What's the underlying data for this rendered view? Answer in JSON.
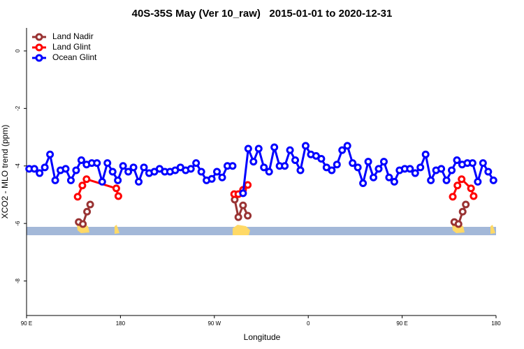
{
  "chart_data": {
    "type": "line",
    "title": "40S-35S May (Ver 10_raw)   2015-01-01 to 2020-12-31",
    "x_label": "Longitude",
    "y_label": "XCO2 - MLO trend (ppm)",
    "xlim": [
      90,
      540
    ],
    "ylim": [
      -9.2,
      0.8
    ],
    "xticks": [
      {
        "value": 90,
        "label": "90 E"
      },
      180,
      {
        "value": 270,
        "label": "90 W"
      },
      {
        "value": 360,
        "label": "0"
      },
      {
        "value": 450,
        "label": "90 E"
      },
      {
        "value": 540,
        "label": "180"
      }
    ],
    "yticks": [
      0,
      -2,
      -4,
      -6,
      -8
    ],
    "legend": "top-left",
    "series": [
      {
        "name": "Land Nadir",
        "color": "#993333",
        "x": [
          140,
          144,
          148,
          151,
          289.5,
          293,
          297.5,
          302,
          500,
          504,
          508,
          511
        ],
        "values": [
          -5.95,
          -6.02,
          -5.59,
          -5.34,
          -5.17,
          -5.78,
          -5.37,
          -5.73,
          -5.95,
          -6.02,
          -5.59,
          -5.34
        ],
        "breaks": [
          4,
          8
        ]
      },
      {
        "name": "Land Glint",
        "color": "#ff0000",
        "x": [
          139,
          143.5,
          147.5,
          176,
          178,
          289,
          293,
          297.5,
          302,
          498.5,
          503,
          507,
          516,
          518.5
        ],
        "values": [
          -5.07,
          -4.68,
          -4.46,
          -4.78,
          -5.05,
          -4.98,
          -4.98,
          -4.83,
          -4.66,
          -5.07,
          -4.68,
          -4.46,
          -4.78,
          -5.05
        ],
        "breaks": [
          5,
          9
        ]
      },
      {
        "name": "Ocean Glint",
        "color": "#0000ff",
        "x": [
          92.5,
          97.5,
          102.5,
          107.5,
          112.5,
          117.5,
          122.5,
          127.5,
          132.5,
          137.5,
          142.5,
          147.5,
          152.5,
          157.5,
          162.5,
          167.5,
          172.5,
          177.5,
          182.5,
          187.5,
          192.5,
          197.5,
          202.5,
          207.5,
          212.5,
          217.5,
          222.5,
          227.5,
          232.5,
          237.5,
          242.5,
          247.5,
          252.5,
          257.5,
          262.5,
          267.5,
          272.5,
          277.5,
          282.5,
          287.5,
          292.5,
          297.5,
          302.5,
          307.5,
          312.5,
          317.5,
          322.5,
          327.5,
          332.5,
          337.5,
          342.5,
          347.5,
          352.5,
          357.5,
          362.5,
          367.5,
          372.5,
          377.5,
          382.5,
          387.5,
          392.5,
          397.5,
          402.5,
          407.5,
          412.5,
          417.5,
          422.5,
          427.5,
          432.5,
          437.5,
          442.5,
          447.5,
          452.5,
          457.5,
          462.5,
          467.5,
          472.5,
          477.5,
          482.5,
          487.5,
          492.5,
          497.5,
          502.5,
          507.5,
          512.5,
          517.5,
          522.5,
          527.5,
          532.5,
          537.5
        ],
        "values": [
          -4.1,
          -4.1,
          -4.25,
          -4.05,
          -3.6,
          -4.5,
          -4.15,
          -4.1,
          -4.5,
          -4.15,
          -3.8,
          -3.95,
          -3.9,
          -3.9,
          -4.55,
          -3.9,
          -4.2,
          -4.5,
          -4.0,
          -4.2,
          -4.05,
          -4.55,
          -4.05,
          -4.25,
          -4.2,
          -4.1,
          -4.2,
          -4.2,
          -4.15,
          -4.05,
          -4.15,
          -4.1,
          -3.9,
          -4.2,
          -4.5,
          -4.45,
          -4.2,
          -4.4,
          -4.0,
          -4.0,
          null,
          -4.95,
          -3.4,
          -3.85,
          -3.4,
          -4.05,
          -4.2,
          -3.35,
          -4.0,
          -4.0,
          -3.45,
          -3.8,
          -4.15,
          -3.3,
          -3.6,
          -3.65,
          -3.75,
          -4.05,
          -4.15,
          -3.95,
          -3.45,
          -3.3,
          -3.9,
          -4.05,
          -4.6,
          -3.85,
          -4.4,
          -4.1,
          -3.85,
          -4.4,
          -4.55,
          -4.15,
          -4.1,
          -4.1,
          -4.25,
          -4.05,
          -3.6,
          -4.5,
          -4.15,
          -4.1,
          -4.5,
          -4.15,
          -3.8,
          -3.95,
          -3.9,
          -3.9,
          -4.55,
          -3.9,
          -4.2,
          -4.5
        ]
      }
    ]
  }
}
